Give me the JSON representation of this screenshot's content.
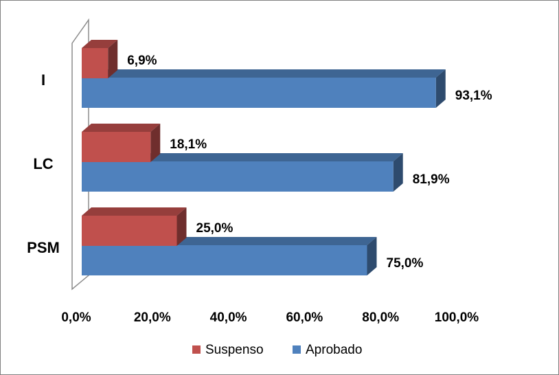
{
  "chart_data": {
    "type": "bar",
    "orientation": "horizontal",
    "style": "3d-clustered",
    "categories": [
      "I",
      "LC",
      "PSM"
    ],
    "series": [
      {
        "name": "Suspenso",
        "values": [
          6.9,
          18.1,
          25.0
        ],
        "labels": [
          "6,9%",
          "18,1%",
          "25,0%"
        ]
      },
      {
        "name": "Aprobado",
        "values": [
          93.1,
          81.9,
          75.0
        ],
        "labels": [
          "93,1%",
          "81,9%",
          "75,0%"
        ]
      }
    ],
    "xlim": [
      0,
      100
    ],
    "xticks": [
      "0,0%",
      "20,0%",
      "40,0%",
      "60,0%",
      "80,0%",
      "100,0%"
    ],
    "grid": false,
    "legend": "bottom",
    "colors": {
      "Suspenso": "#c0504d",
      "Aprobado": "#4f81bd"
    }
  }
}
